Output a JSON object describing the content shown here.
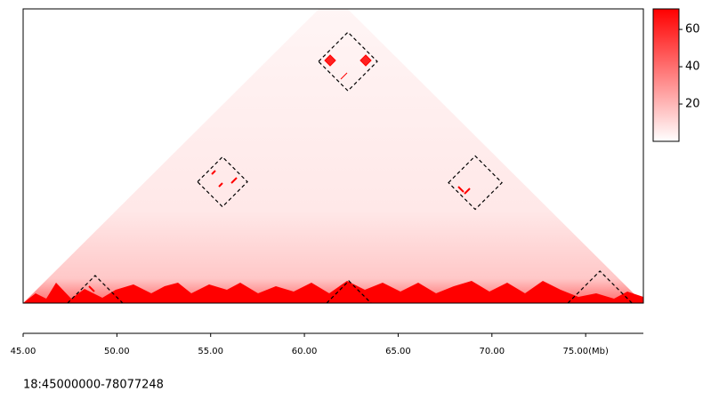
{
  "chart_data": {
    "type": "hic-triangle",
    "region_label": "18:45000000-78077248",
    "xlim": [
      45,
      78.077248
    ],
    "xticks": [
      {
        "value": 45,
        "label": "45.00"
      },
      {
        "value": 50,
        "label": "50.00"
      },
      {
        "value": 55,
        "label": "55.00"
      },
      {
        "value": 60,
        "label": "60.00"
      },
      {
        "value": 65,
        "label": "65.00"
      },
      {
        "value": 70,
        "label": "70.00"
      },
      {
        "value": 75,
        "label": "75.00(Mb)"
      }
    ],
    "clim": [
      0,
      71
    ],
    "cticks": [
      20,
      40,
      60
    ],
    "color": "#ff0000",
    "boxes": [
      {
        "center": 62.32,
        "distance": 25.8,
        "size": 3.13
      },
      {
        "center": 55.63,
        "distance": 12.95,
        "size": 2.66
      },
      {
        "center": 69.11,
        "distance": 12.86,
        "size": 2.85
      },
      {
        "center": 48.84,
        "distance": 0,
        "size": 2.94
      },
      {
        "center": 62.37,
        "distance": 0,
        "size": 2.37
      },
      {
        "center": 75.76,
        "distance": 0,
        "size": 3.42
      }
    ]
  }
}
